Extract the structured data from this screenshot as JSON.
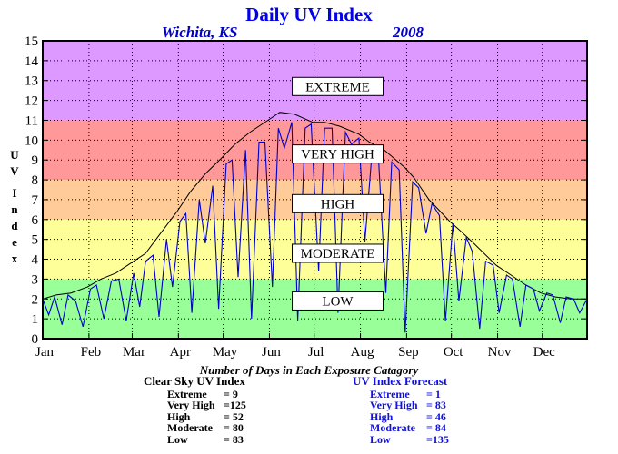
{
  "title": "Daily UV Index",
  "location": "Wichita, KS",
  "year": "2008",
  "ylabel_letters": [
    "U",
    "V",
    "I",
    "n",
    "d",
    "e",
    "x"
  ],
  "footer": {
    "heading": "Number of Days in Each Exposure Catagory",
    "clear_sky": {
      "label": "Clear Sky UV Index",
      "rows": [
        {
          "name": "Extreme",
          "value": "= 9"
        },
        {
          "name": "Very High",
          "value": "=125"
        },
        {
          "name": "High",
          "value": "= 52"
        },
        {
          "name": "Moderate",
          "value": "= 80"
        },
        {
          "name": "Low",
          "value": "= 83"
        }
      ]
    },
    "forecast": {
      "label": "UV Index Forecast",
      "rows": [
        {
          "name": "Extreme",
          "value": "= 1"
        },
        {
          "name": "Very High",
          "value": "= 83"
        },
        {
          "name": "High",
          "value": "= 46"
        },
        {
          "name": "Moderate",
          "value": "= 84"
        },
        {
          "name": "Low",
          "value": "=135"
        }
      ]
    }
  },
  "colors": {
    "low": "#99ff99",
    "moderate": "#ffff99",
    "high": "#ffcc99",
    "very_high": "#ff9999",
    "extreme": "#dd99ff",
    "forecast_line": "#0000cc",
    "clear_sky_line": "#000000"
  },
  "chart_data": {
    "type": "line",
    "ylim": [
      0,
      15
    ],
    "yticks": [
      0,
      1,
      2,
      3,
      4,
      5,
      6,
      7,
      8,
      9,
      10,
      11,
      12,
      13,
      14,
      15
    ],
    "xlim": [
      1,
      366
    ],
    "months": [
      {
        "label": "Jan",
        "day": 1
      },
      {
        "label": "Feb",
        "day": 32
      },
      {
        "label": "Mar",
        "day": 61
      },
      {
        "label": "Apr",
        "day": 92
      },
      {
        "label": "May",
        "day": 122
      },
      {
        "label": "Jun",
        "day": 153
      },
      {
        "label": "Jul",
        "day": 183
      },
      {
        "label": "Aug",
        "day": 214
      },
      {
        "label": "Sep",
        "day": 245
      },
      {
        "label": "Oct",
        "day": 275
      },
      {
        "label": "Nov",
        "day": 306
      },
      {
        "label": "Dec",
        "day": 336
      }
    ],
    "grid": true,
    "bands": [
      {
        "name": "LOW",
        "from": 0,
        "to": 3,
        "label_y": 1.9
      },
      {
        "name": "MODERATE",
        "from": 3,
        "to": 6,
        "label_y": 4.3
      },
      {
        "name": "HIGH",
        "from": 6,
        "to": 8,
        "label_y": 6.8
      },
      {
        "name": "VERY HIGH",
        "from": 8,
        "to": 11,
        "label_y": 9.3
      },
      {
        "name": "EXTREME",
        "from": 11,
        "to": 15,
        "label_y": 12.7
      }
    ],
    "series": [
      {
        "name": "Clear Sky UV Index",
        "color_key": "clear_sky_line",
        "x": [
          1,
          10,
          20,
          31,
          40,
          50,
          60,
          70,
          80,
          91,
          100,
          110,
          121,
          130,
          140,
          152,
          160,
          170,
          182,
          190,
          200,
          213,
          220,
          230,
          244,
          250,
          260,
          274,
          280,
          290,
          305,
          315,
          325,
          335,
          345,
          355,
          366
        ],
        "y": [
          2.0,
          2.2,
          2.3,
          2.6,
          3.0,
          3.3,
          3.8,
          4.3,
          5.3,
          6.4,
          7.4,
          8.3,
          9.1,
          9.8,
          10.4,
          11.0,
          11.4,
          11.3,
          10.9,
          10.9,
          10.7,
          10.3,
          9.9,
          9.5,
          8.6,
          8.1,
          7.0,
          5.9,
          5.5,
          4.8,
          3.7,
          3.2,
          2.7,
          2.3,
          2.1,
          2.0,
          2.0
        ]
      },
      {
        "name": "UV Index Forecast",
        "color_key": "forecast_line",
        "x": [
          1,
          5,
          9,
          14,
          18,
          23,
          28,
          33,
          37,
          42,
          47,
          52,
          57,
          62,
          66,
          70,
          75,
          79,
          84,
          88,
          93,
          97,
          101,
          106,
          110,
          115,
          119,
          124,
          128,
          132,
          137,
          141,
          146,
          150,
          155,
          159,
          163,
          168,
          172,
          177,
          181,
          186,
          190,
          195,
          199,
          204,
          208,
          213,
          217,
          222,
          226,
          231,
          235,
          240,
          244,
          249,
          253,
          258,
          262,
          267,
          271,
          276,
          280,
          285,
          289,
          294,
          298,
          303,
          307,
          312,
          316,
          321,
          325,
          330,
          334,
          339,
          343,
          348,
          352,
          357,
          361,
          366
        ],
        "y": [
          2.0,
          1.2,
          2.1,
          0.7,
          2.2,
          1.9,
          0.6,
          2.5,
          2.7,
          1.0,
          2.9,
          3.0,
          0.9,
          3.3,
          1.6,
          3.9,
          4.2,
          1.1,
          5.0,
          2.6,
          5.9,
          6.3,
          1.3,
          7.0,
          4.8,
          7.7,
          1.5,
          8.8,
          9.0,
          3.1,
          9.5,
          1.0,
          9.9,
          9.9,
          2.6,
          10.6,
          9.6,
          10.9,
          0.9,
          10.6,
          10.8,
          3.4,
          10.6,
          10.6,
          1.3,
          10.4,
          9.8,
          10.1,
          4.9,
          9.6,
          9.3,
          2.3,
          8.9,
          8.5,
          0.3,
          7.9,
          7.6,
          5.3,
          6.8,
          6.2,
          0.9,
          5.8,
          1.9,
          5.1,
          4.4,
          0.5,
          3.9,
          3.7,
          1.3,
          3.2,
          3.0,
          0.6,
          2.7,
          2.5,
          1.4,
          2.3,
          2.2,
          0.8,
          2.1,
          2.0,
          1.3,
          2.0
        ]
      }
    ]
  }
}
